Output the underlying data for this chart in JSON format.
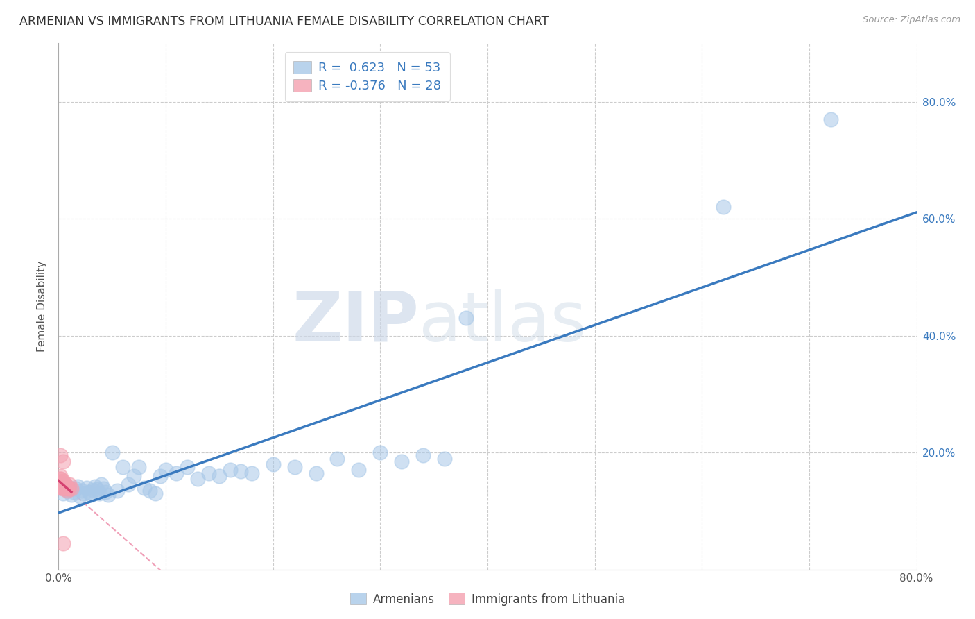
{
  "title": "ARMENIAN VS IMMIGRANTS FROM LITHUANIA FEMALE DISABILITY CORRELATION CHART",
  "source": "Source: ZipAtlas.com",
  "ylabel": "Female Disability",
  "watermark_zip": "ZIP",
  "watermark_atlas": "atlas",
  "legend_r1": "R =  0.623   N = 53",
  "legend_r2": "R = -0.376   N = 28",
  "blue_color": "#a8c8e8",
  "pink_color": "#f4a0b0",
  "blue_line_color": "#3a7abf",
  "pink_line_color": "#d44070",
  "pink_dashed_color": "#f0a0b8",
  "bg_color": "#ffffff",
  "grid_color": "#cccccc",
  "armenians_x": [
    0.004,
    0.006,
    0.008,
    0.01,
    0.012,
    0.014,
    0.016,
    0.018,
    0.02,
    0.022,
    0.024,
    0.026,
    0.028,
    0.03,
    0.032,
    0.034,
    0.036,
    0.038,
    0.04,
    0.042,
    0.044,
    0.046,
    0.05,
    0.055,
    0.06,
    0.065,
    0.07,
    0.075,
    0.08,
    0.085,
    0.09,
    0.095,
    0.1,
    0.11,
    0.12,
    0.13,
    0.14,
    0.15,
    0.16,
    0.17,
    0.18,
    0.2,
    0.22,
    0.24,
    0.26,
    0.28,
    0.3,
    0.32,
    0.34,
    0.36,
    0.38,
    0.62,
    0.72
  ],
  "armenians_y": [
    0.13,
    0.145,
    0.135,
    0.14,
    0.128,
    0.132,
    0.138,
    0.142,
    0.125,
    0.135,
    0.13,
    0.14,
    0.133,
    0.128,
    0.136,
    0.142,
    0.137,
    0.13,
    0.145,
    0.138,
    0.132,
    0.128,
    0.2,
    0.135,
    0.175,
    0.145,
    0.16,
    0.175,
    0.14,
    0.135,
    0.13,
    0.16,
    0.17,
    0.165,
    0.175,
    0.155,
    0.165,
    0.16,
    0.17,
    0.168,
    0.165,
    0.18,
    0.175,
    0.165,
    0.19,
    0.17,
    0.2,
    0.185,
    0.195,
    0.19,
    0.43,
    0.62,
    0.77
  ],
  "lithuania_x": [
    0.002,
    0.004,
    0.006,
    0.008,
    0.01,
    0.012,
    0.002,
    0.004,
    0.006,
    0.008,
    0.01,
    0.002,
    0.004,
    0.006,
    0.008,
    0.002,
    0.004,
    0.006,
    0.002,
    0.004,
    0.002,
    0.004,
    0.002,
    0.002,
    0.006,
    0.002,
    0.004,
    0.002
  ],
  "lithuania_y": [
    0.195,
    0.185,
    0.145,
    0.14,
    0.145,
    0.138,
    0.155,
    0.148,
    0.14,
    0.135,
    0.138,
    0.16,
    0.152,
    0.142,
    0.138,
    0.148,
    0.145,
    0.14,
    0.142,
    0.138,
    0.15,
    0.145,
    0.148,
    0.155,
    0.145,
    0.142,
    0.045,
    0.14
  ],
  "xmin": 0.0,
  "xmax": 0.8,
  "ymin": 0.0,
  "ymax": 0.9,
  "ytick_positions": [
    0.0,
    0.2,
    0.4,
    0.6,
    0.8
  ],
  "ytick_labels_right": [
    "",
    "20.0%",
    "40.0%",
    "60.0%",
    "80.0%"
  ],
  "xtick_positions": [
    0.0,
    0.1,
    0.2,
    0.3,
    0.4,
    0.5,
    0.6,
    0.7,
    0.8
  ],
  "xtick_labels": [
    "0.0%",
    "",
    "",
    "",
    "",
    "",
    "",
    "",
    "80.0%"
  ]
}
